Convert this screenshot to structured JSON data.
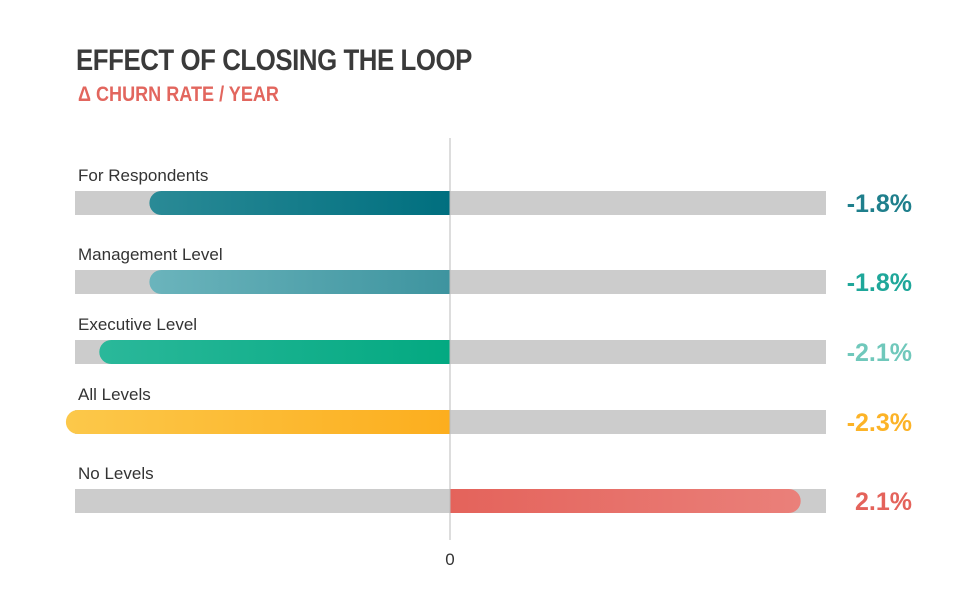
{
  "chart_data": {
    "type": "bar",
    "orientation": "horizontal",
    "title": "EFFECT OF CLOSING THE LOOP",
    "subtitle": "Δ CHURN RATE / YEAR",
    "zero_label": "0",
    "xlim": [
      -3.0,
      3.0
    ],
    "grid": false,
    "legend": "none",
    "categories": [
      "For Respondents",
      "Management Level",
      "Executive Level",
      "All Levels",
      "No Levels"
    ],
    "values": [
      -1.8,
      -1.8,
      -2.1,
      -2.3,
      2.1
    ],
    "value_labels": [
      "-1.8%",
      "-1.8%",
      "-2.1%",
      "-2.3%",
      "2.1%"
    ],
    "colors": [
      {
        "bar_start": "#2a8a96",
        "bar_end": "#006f7f",
        "label": "#1f7f8c"
      },
      {
        "bar_start": "#6bb4bc",
        "bar_end": "#3e949f",
        "label": "#1fa79a"
      },
      {
        "bar_start": "#2ab89a",
        "bar_end": "#03a981",
        "label": "#70c8bb"
      },
      {
        "bar_start": "#fcc84a",
        "bar_end": "#fcae1e",
        "label": "#fcb327"
      },
      {
        "bar_start": "#e4635b",
        "bar_end": "#ea807a",
        "label": "#e4635b"
      }
    ],
    "track_color": "#cccccc",
    "axis_color": "#bbbbbb"
  }
}
